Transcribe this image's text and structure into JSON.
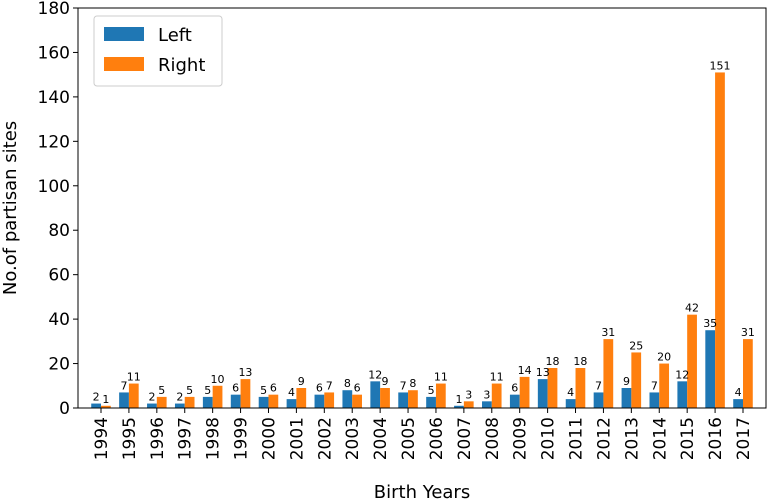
{
  "chart_data": {
    "type": "bar",
    "title": "",
    "xlabel": "Birth Years",
    "ylabel": "No.of partisan sites",
    "ylim": [
      0,
      180
    ],
    "yticks": [
      0,
      20,
      40,
      60,
      80,
      100,
      120,
      140,
      160,
      180
    ],
    "grid": false,
    "legend_position": "top-left",
    "categories": [
      "1994",
      "1995",
      "1996",
      "1997",
      "1998",
      "1999",
      "2000",
      "2001",
      "2002",
      "2003",
      "2004",
      "2005",
      "2006",
      "2007",
      "2008",
      "2009",
      "2010",
      "2011",
      "2012",
      "2013",
      "2014",
      "2015",
      "2016",
      "2017"
    ],
    "series": [
      {
        "name": "Left",
        "color": "#1f77b4",
        "values": [
          2,
          7,
          2,
          2,
          5,
          6,
          5,
          4,
          6,
          8,
          12,
          7,
          5,
          1,
          3,
          6,
          13,
          4,
          7,
          9,
          7,
          12,
          35,
          4
        ]
      },
      {
        "name": "Right",
        "color": "#ff7f0e",
        "values": [
          1,
          11,
          5,
          5,
          10,
          13,
          6,
          9,
          7,
          6,
          9,
          8,
          11,
          3,
          11,
          14,
          18,
          18,
          31,
          25,
          20,
          42,
          151,
          31
        ]
      }
    ]
  }
}
